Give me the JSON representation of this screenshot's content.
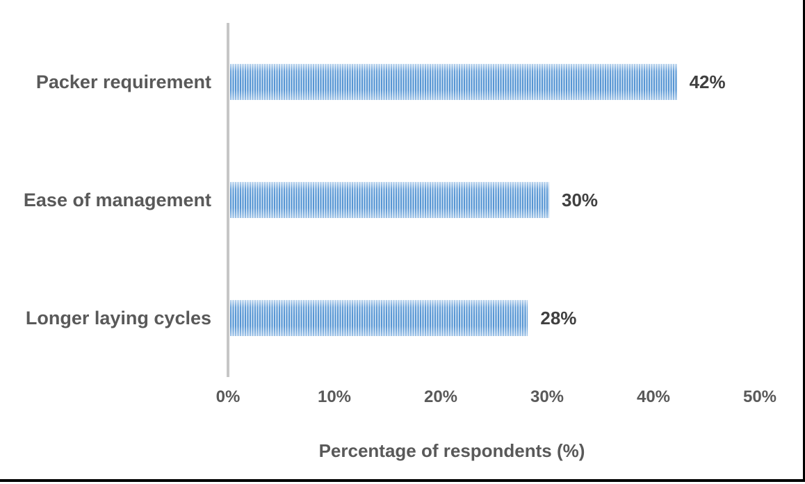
{
  "chart_data": {
    "type": "bar",
    "orientation": "horizontal",
    "title": "",
    "categories": [
      "Packer requirement",
      "Ease of management",
      "Longer laying cycles"
    ],
    "values": [
      42,
      30,
      28
    ],
    "value_labels": [
      "42%",
      "30%",
      "28%"
    ],
    "xlabel": "Percentage of respondents (%)",
    "ylabel": "",
    "xlim": [
      0,
      50
    ],
    "x_tick_values": [
      0,
      10,
      20,
      30,
      40,
      50
    ],
    "x_tick_labels": [
      "0%",
      "10%",
      "20%",
      "30%",
      "40%",
      "50%"
    ],
    "grid": false,
    "legend": "none",
    "bar_fill_style": "vertical-stripe-pattern",
    "bar_color": "#5B9BD5",
    "bar_stripe_light_color": "#E9F1FA",
    "axis_line_color": "#C6C6C6",
    "category_label_color": "#595959",
    "tick_label_color": "#595959",
    "value_label_color": "#404040",
    "frame_border_color": "#000000"
  }
}
